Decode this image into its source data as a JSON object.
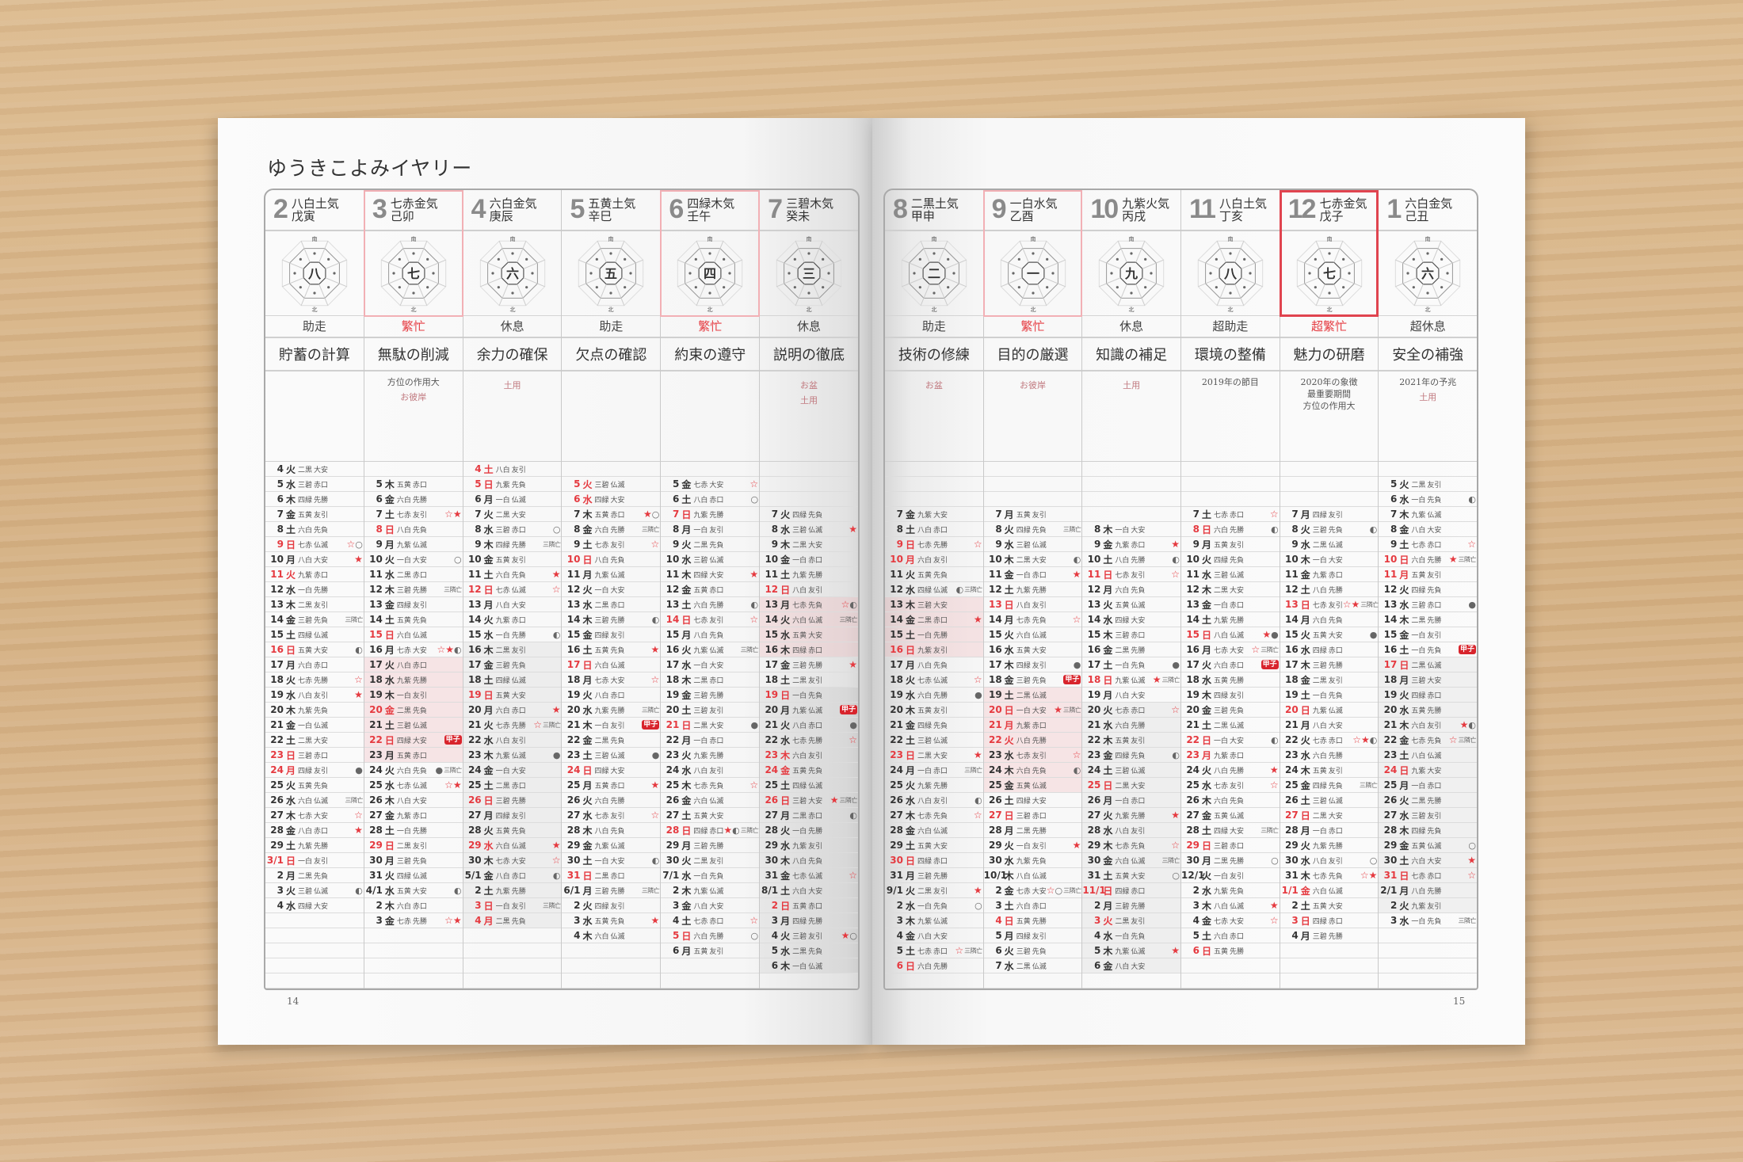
{
  "title": "ゆうきこよみイヤリー",
  "colors": {
    "accent": "#e53a40",
    "highlight_light": "#f2b0b5",
    "highlight_strong": "#e0444f",
    "kasshi_badge": "#d8242c"
  },
  "icons": {
    "☆": "hollow-star-icon",
    "★": "filled-star-icon",
    "○": "full-moon-icon",
    "●": "new-moon-icon",
    "◐": "quarter-moon-icon"
  },
  "diagram_labels": {
    "top": "南",
    "bottom": "北"
  },
  "pages": [
    {
      "page_number": "14",
      "months": [
        {
          "month": "2",
          "star": "八白土気",
          "kanshi": "戊寅",
          "diagram_center": "八",
          "fortune": "助走",
          "fortune_red": false,
          "theme": "貯蓄の計算",
          "note": [],
          "highlight": "",
          "red_days": [
            "11",
            "24"
          ],
          "periods": [],
          "days": [
            "4 火 二黒 大安",
            "5 水 三碧 赤口",
            "6 木 四緑 先勝",
            "7 金 五黄 友引",
            "8 土 六白 先負",
            "9 日 七赤 仏滅 ☆○",
            "10 月 八白 大安 ★",
            "11 火 九紫 赤口",
            "12 水 一白 先勝",
            "13 木 二黒 友引",
            "14 金 三碧 先負 三隣亡",
            "15 土 四緑 仏滅",
            "16 日 五黄 大安 ◐",
            "17 月 六白 赤口",
            "18 火 七赤 先勝 ☆",
            "19 水 八白 友引 ★",
            "20 木 九紫 先負",
            "21 金 一白 仏滅",
            "22 土 二黒 大安",
            "23 日 三碧 赤口",
            "24 月 四緑 友引 ●",
            "25 火 五黄 先負",
            "26 水 六白 仏滅 三隣亡",
            "27 木 七赤 大安 ☆",
            "28 金 八白 赤口 ★",
            "29 土 九紫 先勝",
            "3/1 日 一白 友引",
            "2 月 二黒 先負",
            "3 火 三碧 仏滅 ◐",
            "4 水 四緑 大安"
          ]
        },
        {
          "month": "3",
          "star": "七赤金気",
          "kanshi": "己卯",
          "diagram_center": "七",
          "fortune": "繁忙",
          "fortune_red": true,
          "theme": "無駄の削減",
          "note": [
            "方位の作用大"
          ],
          "highlight": "light",
          "red_days": [
            "20"
          ],
          "periods": [
            {
              "label": "お彼岸",
              "start": "17",
              "end": "23",
              "tone": "pink"
            }
          ],
          "days": [
            "",
            "5 木 五黄 赤口",
            "6 金 六白 先勝",
            "7 土 七赤 友引 ☆★",
            "8 日 八白 先負",
            "9 月 九紫 仏滅",
            "10 火 一白 大安 ○",
            "11 水 二黒 赤口",
            "12 木 三碧 先勝 三隣亡",
            "13 金 四緑 友引",
            "14 土 五黄 先負",
            "15 日 六白 仏滅",
            "16 月 七赤 大安 ☆★◐",
            "17 火 八白 赤口",
            "18 水 九紫 先勝",
            "19 木 一白 友引",
            "20 金 二黒 先負",
            "21 土 三碧 仏滅",
            "22 日 四緑 大安 甲子",
            "23 月 五黄 赤口",
            "24 火 六白 先負 ● 三隣亡",
            "25 水 七赤 仏滅 ☆★",
            "26 木 八白 大安",
            "27 金 九紫 赤口",
            "28 土 一白 先勝",
            "29 日 二黒 友引",
            "30 月 三碧 先負",
            "31 火 四緑 仏滅",
            "4/1 水 五黄 大安 ◐",
            "2 木 六白 赤口",
            "3 金 七赤 先勝 ☆★"
          ]
        },
        {
          "month": "4",
          "star": "六白金気",
          "kanshi": "庚辰",
          "diagram_center": "六",
          "fortune": "休息",
          "fortune_red": false,
          "theme": "余力の確保",
          "note": [],
          "highlight": "",
          "red_days": [
            "29",
            "4"
          ],
          "periods": [
            {
              "label": "土用",
              "start": "16",
              "end": "4",
              "tone": "gray"
            }
          ],
          "days": [
            "4 土 八白 友引",
            "5 日 九紫 先負",
            "6 月 一白 仏滅",
            "7 火 二黒 大安",
            "8 水 三碧 赤口 ○",
            "9 木 四緑 先勝 三隣亡",
            "10 金 五黄 友引",
            "11 土 六白 先負 ★",
            "12 日 七赤 仏滅 ☆",
            "13 月 八白 大安",
            "14 火 九紫 赤口",
            "15 水 一白 先勝 ◐",
            "16 木 二黒 友引",
            "17 金 三碧 先負",
            "18 土 四緑 仏滅",
            "19 日 五黄 大安",
            "20 月 六白 赤口 ★",
            "21 火 七赤 先勝 ☆ 三隣亡",
            "22 水 八白 友引",
            "23 木 九紫 仏滅 ●",
            "24 金 一白 大安",
            "25 土 二黒 赤口",
            "26 日 三碧 先勝",
            "27 月 四緑 友引",
            "28 火 五黄 先負",
            "29 水 六白 仏滅 ★",
            "30 木 七赤 大安 ☆",
            "5/1 金 八白 赤口 ◐",
            "2 土 九紫 先勝",
            "3 日 一白 友引 三隣亡",
            "4 月 二黒 先負"
          ]
        },
        {
          "month": "5",
          "star": "五黄土気",
          "kanshi": "辛巳",
          "diagram_center": "五",
          "fortune": "助走",
          "fortune_red": false,
          "theme": "欠点の確認",
          "note": [],
          "highlight": "",
          "red_days": [
            "5",
            "6"
          ],
          "periods": [],
          "days": [
            "",
            "5 火 三碧 仏滅",
            "6 水 四緑 大安",
            "7 木 五黄 赤口 ★○",
            "8 金 六白 先勝 三隣亡",
            "9 土 七赤 友引 ☆",
            "10 日 八白 先負",
            "11 月 九紫 仏滅",
            "12 火 一白 大安",
            "13 水 二黒 赤口",
            "14 木 三碧 先勝 ◐",
            "15 金 四緑 友引",
            "16 土 五黄 先負 ★",
            "17 日 六白 仏滅",
            "18 月 七赤 大安 ☆",
            "19 火 八白 赤口",
            "20 水 九紫 先勝 三隣亡",
            "21 木 一白 友引 甲子",
            "22 金 二黒 先負",
            "23 土 三碧 仏滅 ●",
            "24 日 四緑 大安",
            "25 月 五黄 赤口 ★",
            "26 火 六白 先勝",
            "27 水 七赤 友引 ☆",
            "28 木 八白 先負",
            "29 金 九紫 仏滅",
            "30 土 一白 大安 ◐",
            "31 日 二黒 赤口",
            "6/1 月 三碧 先勝 三隣亡",
            "2 火 四緑 友引",
            "3 水 五黄 先負 ★",
            "4 木 六白 仏滅"
          ]
        },
        {
          "month": "6",
          "star": "四緑木気",
          "kanshi": "壬午",
          "diagram_center": "四",
          "fortune": "繁忙",
          "fortune_red": true,
          "theme": "約束の遵守",
          "note": [],
          "highlight": "light",
          "red_days": [],
          "periods": [],
          "days": [
            "",
            "5 金 七赤 大安 ☆",
            "6 土 八白 赤口 ○",
            "7 日 九紫 先勝",
            "8 月 一白 友引",
            "9 火 二黒 先負",
            "10 水 三碧 仏滅",
            "11 木 四緑 大安 ★",
            "12 金 五黄 赤口",
            "13 土 六白 先勝 ◐",
            "14 日 七赤 友引 ☆",
            "15 月 八白 先負",
            "16 火 九紫 仏滅 三隣亡",
            "17 水 一白 大安",
            "18 木 二黒 赤口",
            "19 金 三碧 先勝",
            "20 土 三碧 友引",
            "21 日 二黒 大安 ●",
            "22 月 一白 赤口",
            "23 火 九紫 先勝",
            "24 水 八白 友引",
            "25 木 七赤 先負 ☆",
            "26 金 六白 仏滅",
            "27 土 五黄 大安",
            "28 日 四緑 赤口 ★◐ 三隣亡",
            "29 月 三碧 先勝",
            "30 火 二黒 友引",
            "7/1 水 一白 先負",
            "2 木 九紫 仏滅",
            "3 金 八白 大安",
            "4 土 七赤 赤口 ☆",
            "5 日 六白 先勝 ○",
            "6 月 五黄 友引"
          ]
        },
        {
          "month": "7",
          "star": "三碧木気",
          "kanshi": "癸未",
          "diagram_center": "三",
          "fortune": "休息",
          "fortune_red": false,
          "theme": "説明の徹底",
          "note": [],
          "highlight": "",
          "red_days": [
            "23",
            "24"
          ],
          "periods": [
            {
              "label": "お盆",
              "start": "13",
              "end": "16",
              "tone": "pink"
            },
            {
              "label": "土用",
              "start": "19",
              "end": "6",
              "tone": "gray"
            }
          ],
          "days": [
            "",
            "",
            "",
            "7 火 四緑 先負",
            "8 水 三碧 仏滅 ★",
            "9 木 二黒 大安",
            "10 金 一白 赤口",
            "11 土 九紫 先勝",
            "12 日 八白 友引",
            "13 月 七赤 先負 ☆◐",
            "14 火 六白 仏滅 三隣亡",
            "15 水 五黄 大安",
            "16 木 四緑 赤口",
            "17 金 三碧 先勝 ★",
            "18 土 二黒 友引",
            "19 日 一白 先負",
            "20 月 九紫 仏滅 甲子",
            "21 火 八白 赤口 ●",
            "22 水 七赤 先勝 ☆",
            "23 木 六白 友引",
            "24 金 五黄 先負",
            "25 土 四緑 仏滅",
            "26 日 三碧 大安 ★ 三隣亡",
            "27 月 二黒 赤口 ◐",
            "28 火 一白 先勝",
            "29 水 九紫 友引",
            "30 木 八白 先負",
            "31 金 七赤 仏滅 ☆",
            "8/1 土 六白 大安",
            "2 日 五黄 赤口",
            "3 月 四緑 先勝",
            "4 火 三碧 友引 ★○",
            "5 水 二黒 先負",
            "6 木 一白 仏滅"
          ]
        }
      ]
    },
    {
      "page_number": "15",
      "months": [
        {
          "month": "8",
          "star": "二黒土気",
          "kanshi": "甲申",
          "diagram_center": "二",
          "fortune": "助走",
          "fortune_red": false,
          "theme": "技術の修練",
          "note": [],
          "highlight": "",
          "red_days": [
            "10"
          ],
          "periods": [
            {
              "label": "お盆",
              "start": "13",
              "end": "16",
              "tone": "pink"
            }
          ],
          "days": [
            "",
            "",
            "",
            "7 金 九紫 大安",
            "8 土 八白 赤口",
            "9 日 七赤 先勝 ☆",
            "10 月 六白 友引",
            "11 火 五黄 先負",
            "12 水 四緑 仏滅 ◐ 三隣亡",
            "13 木 三碧 大安",
            "14 金 二黒 赤口 ★",
            "15 土 一白 先勝",
            "16 日 九紫 友引",
            "17 月 八白 先負",
            "18 火 七赤 仏滅 ☆",
            "19 水 六白 先勝 ●",
            "20 木 五黄 友引",
            "21 金 四緑 先負",
            "22 土 三碧 仏滅",
            "23 日 二黒 大安 ★",
            "24 月 一白 赤口 三隣亡",
            "25 火 九紫 先勝",
            "26 水 八白 友引 ◐",
            "27 木 七赤 先負 ☆",
            "28 金 六白 仏滅",
            "29 土 五黄 大安",
            "30 日 四緑 赤口",
            "31 月 三碧 先勝",
            "9/1 火 二黒 友引 ★",
            "2 水 一白 先負 ○",
            "3 木 九紫 仏滅",
            "4 金 八白 大安",
            "5 土 七赤 赤口 ☆ 三隣亡",
            "6 日 六白 先勝"
          ]
        },
        {
          "month": "9",
          "star": "一白水気",
          "kanshi": "乙酉",
          "diagram_center": "一",
          "fortune": "繁忙",
          "fortune_red": true,
          "theme": "目的の厳選",
          "note": [],
          "highlight": "light",
          "red_days": [
            "21",
            "22"
          ],
          "periods": [
            {
              "label": "お彼岸",
              "start": "19",
              "end": "25",
              "tone": "pink"
            }
          ],
          "days": [
            "",
            "",
            "",
            "7 月 五黄 友引",
            "8 火 四緑 先負 三隣亡",
            "9 水 三碧 仏滅",
            "10 木 二黒 大安 ◐",
            "11 金 一白 赤口 ★",
            "12 土 九紫 先勝",
            "13 日 八白 友引",
            "14 月 七赤 先負 ☆",
            "15 火 六白 仏滅",
            "16 水 五黄 大安",
            "17 木 四緑 友引 ●",
            "18 金 三碧 先負 甲子",
            "19 土 二黒 仏滅",
            "20 日 一白 大安 ★ 三隣亡",
            "21 月 九紫 赤口",
            "22 火 八白 先勝",
            "23 水 七赤 友引 ☆",
            "24 木 六白 先負 ◐",
            "25 金 五黄 仏滅",
            "26 土 四緑 大安",
            "27 日 三碧 赤口",
            "28 月 二黒 先勝",
            "29 火 一白 友引 ★",
            "30 水 九紫 先負",
            "10/1 木 八白 仏滅",
            "2 金 七赤 大安 ☆○ 三隣亡",
            "3 土 六白 赤口",
            "4 日 五黄 先勝",
            "5 月 四緑 友引",
            "6 火 三碧 先負",
            "7 水 二黒 仏滅"
          ]
        },
        {
          "month": "10",
          "star": "九紫火気",
          "kanshi": "丙戌",
          "diagram_center": "九",
          "fortune": "休息",
          "fortune_red": false,
          "theme": "知識の補足",
          "note": [],
          "highlight": "",
          "red_days": [
            "3"
          ],
          "periods": [
            {
              "label": "土用",
              "start": "20",
              "end": "6",
              "tone": "gray"
            }
          ],
          "days": [
            "",
            "",
            "",
            "",
            "8 木 一白 大安",
            "9 金 九紫 赤口 ★",
            "10 土 八白 先勝 ◐",
            "11 日 七赤 友引 ☆",
            "12 月 六白 先負",
            "13 火 五黄 仏滅",
            "14 水 四緑 大安",
            "15 木 三碧 赤口",
            "16 金 二黒 先勝",
            "17 土 一白 先負 ●",
            "18 日 九紫 仏滅 ★ 三隣亡",
            "19 月 八白 大安",
            "20 火 七赤 赤口 ☆",
            "21 水 六白 先勝",
            "22 木 五黄 友引",
            "23 金 四緑 先負 ◐",
            "24 土 三碧 仏滅",
            "25 日 二黒 大安",
            "26 月 一白 赤口",
            "27 火 九紫 先勝 ★",
            "28 水 八白 友引",
            "29 木 七赤 先負 ☆",
            "30 金 六白 仏滅 三隣亡",
            "31 土 五黄 大安 ○",
            "11/1 日 四緑 赤口",
            "2 月 三碧 先勝",
            "3 火 二黒 友引",
            "4 水 一白 先負",
            "5 木 九紫 仏滅 ★",
            "6 金 八白 大安"
          ]
        },
        {
          "month": "11",
          "star": "八白土気",
          "kanshi": "丁亥",
          "diagram_center": "八",
          "fortune": "超助走",
          "fortune_red": false,
          "theme": "環境の整備",
          "note": [
            "2019年の節目"
          ],
          "highlight": "",
          "red_days": [
            "23"
          ],
          "periods": [],
          "days": [
            "",
            "",
            "",
            "7 土 七赤 赤口 ☆",
            "8 日 六白 先勝 ◐",
            "9 月 五黄 友引",
            "10 火 四緑 先負",
            "11 水 三碧 仏滅",
            "12 木 二黒 大安",
            "13 金 一白 赤口",
            "14 土 九紫 先勝",
            "15 日 八白 仏滅 ★●",
            "16 月 七赤 大安 ☆ 三隣亡",
            "17 火 六白 赤口 甲子",
            "18 水 五黄 先勝",
            "19 木 四緑 友引",
            "20 金 三碧 先負",
            "21 土 二黒 仏滅",
            "22 日 一白 大安 ◐",
            "23 月 九紫 赤口",
            "24 火 八白 先勝 ★",
            "25 水 七赤 友引 ☆",
            "26 木 六白 先負",
            "27 金 五黄 仏滅",
            "28 土 四緑 大安 三隣亡",
            "29 日 三碧 赤口",
            "30 月 二黒 先勝 ○",
            "12/1 火 一白 友引",
            "2 水 九紫 先負",
            "3 木 八白 仏滅 ★",
            "4 金 七赤 大安 ☆",
            "5 土 六白 赤口",
            "6 日 五黄 先勝"
          ]
        },
        {
          "month": "12",
          "star": "七赤金気",
          "kanshi": "戊子",
          "diagram_center": "七",
          "fortune": "超繁忙",
          "fortune_red": true,
          "theme": "魅力の研磨",
          "note": [
            "2020年の象徴",
            "最重要期間",
            "方位の作用大"
          ],
          "highlight": "strong",
          "red_days": [
            "1/1"
          ],
          "periods": [],
          "days": [
            "",
            "",
            "",
            "7 月 四緑 友引",
            "8 火 三碧 先負 ◐",
            "9 水 二黒 仏滅",
            "10 木 一白 大安",
            "11 金 九紫 赤口",
            "12 土 八白 先勝",
            "13 日 七赤 友引 ☆★ 三隣亡",
            "14 月 六白 先負",
            "15 火 五黄 大安 ●",
            "16 水 四緑 赤口",
            "17 木 三碧 先勝",
            "18 金 二黒 友引",
            "19 土 一白 先負",
            "20 日 九紫 仏滅",
            "21 月 八白 大安",
            "22 火 七赤 赤口 ☆★◐",
            "23 水 六白 先勝",
            "24 木 五黄 友引",
            "25 金 四緑 先負 三隣亡",
            "26 土 三碧 仏滅",
            "27 日 二黒 大安",
            "28 月 一白 赤口",
            "29 火 九紫 先勝",
            "30 水 八白 友引 ○",
            "31 木 七赤 先負 ☆★",
            "1/1 金 六白 仏滅",
            "2 土 五黄 大安",
            "3 日 四緑 赤口",
            "4 月 三碧 先勝"
          ]
        },
        {
          "month": "1",
          "star": "六白金気",
          "kanshi": "己丑",
          "diagram_center": "六",
          "fortune": "超休息",
          "fortune_red": false,
          "theme": "安全の補強",
          "note": [
            "2021年の予兆"
          ],
          "highlight": "",
          "red_days": [
            "11"
          ],
          "periods": [
            {
              "label": "土用",
              "start": "17",
              "end": "2",
              "tone": "gray"
            }
          ],
          "days": [
            "",
            "5 火 二黒 友引",
            "6 水 一白 先負 ◐",
            "7 木 九紫 仏滅",
            "8 金 八白 大安",
            "9 土 七赤 赤口 ☆",
            "10 日 六白 先勝 ★ 三隣亡",
            "11 月 五黄 友引",
            "12 火 四緑 先負",
            "13 水 三碧 赤口 ●",
            "14 木 二黒 先勝",
            "15 金 一白 友引",
            "16 土 一白 先負 甲子",
            "17 日 二黒 仏滅",
            "18 月 三碧 大安",
            "19 火 四緑 赤口",
            "20 水 五黄 先勝",
            "21 木 六白 友引 ★◐",
            "22 金 七赤 先負 ☆ 三隣亡",
            "23 土 八白 仏滅",
            "24 日 九紫 大安",
            "25 月 一白 赤口",
            "26 火 二黒 先勝",
            "27 水 三碧 友引",
            "28 木 四緑 先負",
            "29 金 五黄 仏滅 ○",
            "30 土 六白 大安 ★",
            "31 日 七赤 赤口 ☆",
            "2/1 月 八白 先勝",
            "2 火 九紫 友引",
            "3 水 一白 先負 三隣亡"
          ]
        }
      ]
    }
  ]
}
